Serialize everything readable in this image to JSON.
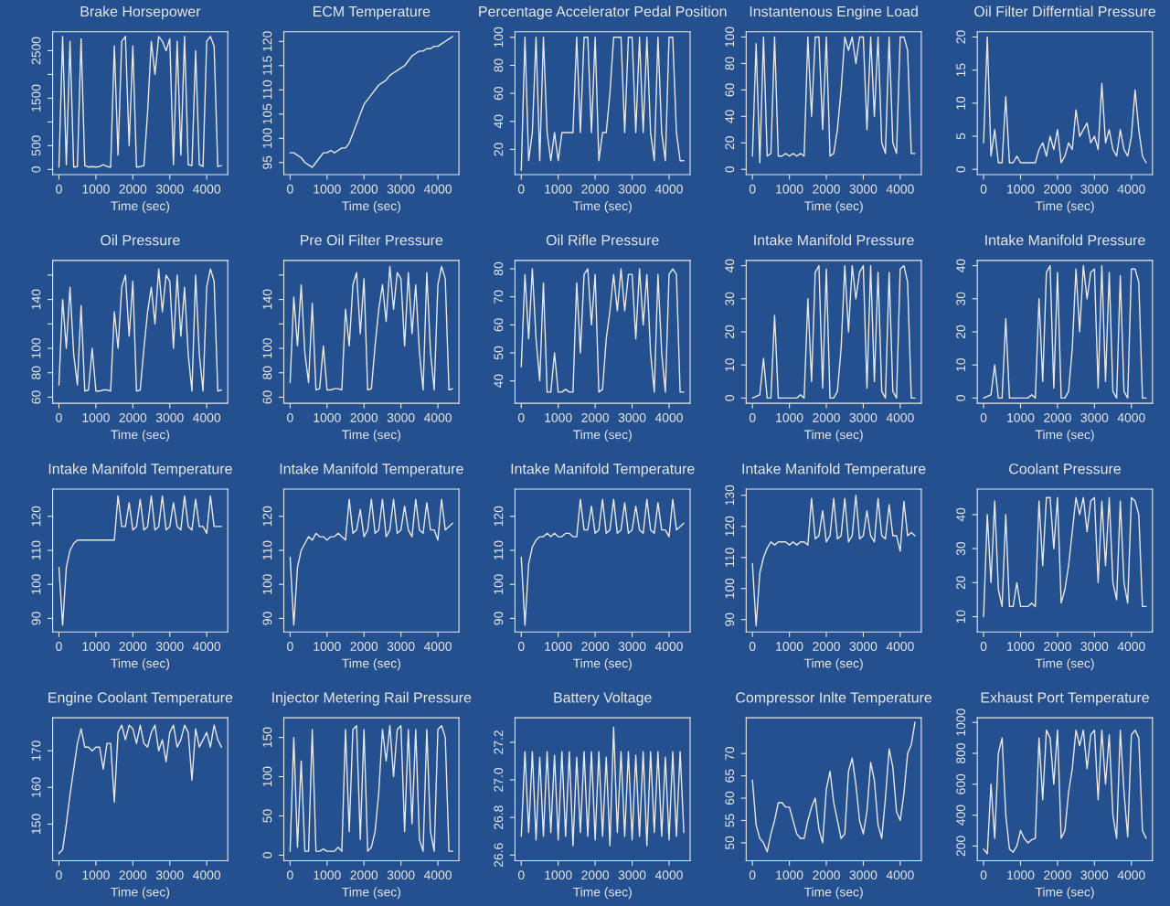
{
  "chart_data": [
    {
      "type": "line",
      "title": "Brake Horsepower",
      "xlabel": "Time (sec)",
      "color": "#e8e8e8",
      "xlim": [
        -170,
        4570
      ],
      "xticks": [
        0,
        1000,
        2000,
        3000,
        4000
      ],
      "ylim": [
        -110,
        2900
      ],
      "yticks": [
        0,
        500,
        {
          "value": 1000,
          "label": null
        },
        1500,
        {
          "value": 2000,
          "label": null
        },
        2500
      ],
      "x": [
        0,
        100,
        200,
        300,
        400,
        500,
        600,
        700,
        800,
        900,
        1000,
        1100,
        1200,
        1300,
        1400,
        1500,
        1600,
        1700,
        1800,
        1900,
        2000,
        2100,
        2200,
        2300,
        2400,
        2500,
        2600,
        2700,
        2800,
        2900,
        3000,
        3100,
        3200,
        3300,
        3400,
        3500,
        3600,
        3700,
        3800,
        3900,
        4000,
        4100,
        4200,
        4300,
        4400
      ],
      "values": [
        50,
        2800,
        100,
        2700,
        50,
        60,
        2750,
        80,
        50,
        60,
        50,
        60,
        100,
        60,
        50,
        2600,
        300,
        2700,
        2800,
        500,
        2600,
        50,
        60,
        80,
        1200,
        2700,
        2000,
        2800,
        2700,
        2500,
        2750,
        100,
        2700,
        300,
        2800,
        100,
        80,
        2500,
        100,
        60,
        2700,
        2800,
        2600,
        60,
        80
      ]
    },
    {
      "type": "line",
      "title": "ECM Temperature",
      "xlabel": "Time (sec)",
      "color": "#e8e8e8",
      "xlim": [
        -170,
        4570
      ],
      "xticks": [
        0,
        1000,
        2000,
        3000,
        4000
      ],
      "ylim": [
        92.5,
        122
      ],
      "yticks": [
        95,
        100,
        105,
        110,
        115,
        120
      ],
      "x": [
        0,
        100,
        200,
        300,
        400,
        500,
        600,
        700,
        800,
        900,
        1000,
        1100,
        1200,
        1300,
        1400,
        1500,
        1600,
        1700,
        1800,
        1900,
        2000,
        2100,
        2200,
        2300,
        2400,
        2500,
        2600,
        2700,
        2800,
        2900,
        3000,
        3100,
        3200,
        3300,
        3400,
        3500,
        3600,
        3700,
        3800,
        3900,
        4000,
        4100,
        4200,
        4300,
        4400
      ],
      "values": [
        97,
        97,
        96.5,
        96,
        95,
        94.5,
        94,
        95,
        96,
        97,
        97,
        97.5,
        97,
        97.5,
        98,
        98,
        99,
        101,
        103,
        105,
        107,
        108,
        109,
        110,
        111,
        111.5,
        112,
        113,
        113.5,
        114,
        114.5,
        115,
        116,
        117,
        117.5,
        118,
        118,
        118.5,
        118.5,
        119,
        119,
        119.5,
        120,
        120.5,
        121
      ]
    },
    {
      "type": "line",
      "title": "Percentage Accelerator Pedal Position",
      "xlabel": "Time (sec)",
      "color": "#e8e8e8",
      "xlim": [
        -170,
        4570
      ],
      "xticks": [
        0,
        1000,
        2000,
        3000,
        4000
      ],
      "ylim": [
        2,
        104
      ],
      "yticks": [
        20,
        40,
        60,
        80,
        100
      ],
      "x": [
        0,
        100,
        200,
        300,
        400,
        500,
        600,
        700,
        800,
        900,
        1000,
        1100,
        1200,
        1300,
        1400,
        1500,
        1600,
        1700,
        1800,
        1900,
        2000,
        2100,
        2200,
        2300,
        2400,
        2500,
        2600,
        2700,
        2800,
        2900,
        3000,
        3100,
        3200,
        3300,
        3400,
        3500,
        3600,
        3700,
        3800,
        3900,
        4000,
        4100,
        4200,
        4300,
        4400
      ],
      "values": [
        5,
        100,
        12,
        32,
        100,
        12,
        100,
        32,
        12,
        32,
        12,
        32,
        32,
        32,
        32,
        100,
        32,
        100,
        100,
        32,
        100,
        12,
        32,
        32,
        60,
        100,
        100,
        100,
        32,
        100,
        100,
        32,
        100,
        32,
        100,
        32,
        12,
        100,
        32,
        12,
        100,
        100,
        32,
        12,
        12
      ]
    },
    {
      "type": "line",
      "title": "Instantenous Engine Load",
      "xlabel": "Time (sec)",
      "color": "#e8e8e8",
      "xlim": [
        -170,
        4570
      ],
      "xticks": [
        0,
        1000,
        2000,
        3000,
        4000
      ],
      "ylim": [
        -4,
        104
      ],
      "yticks": [
        0,
        20,
        40,
        60,
        80,
        100
      ],
      "x": [
        0,
        100,
        200,
        300,
        400,
        500,
        600,
        700,
        800,
        900,
        1000,
        1100,
        1200,
        1300,
        1400,
        1500,
        1600,
        1700,
        1800,
        1900,
        2000,
        2100,
        2200,
        2300,
        2400,
        2500,
        2600,
        2700,
        2800,
        2900,
        3000,
        3100,
        3200,
        3300,
        3400,
        3500,
        3600,
        3700,
        3800,
        3900,
        4000,
        4100,
        4200,
        4300,
        4400
      ],
      "values": [
        10,
        95,
        5,
        100,
        10,
        12,
        100,
        10,
        10,
        12,
        10,
        12,
        10,
        12,
        10,
        100,
        40,
        100,
        100,
        30,
        100,
        10,
        12,
        30,
        60,
        100,
        90,
        100,
        80,
        100,
        100,
        30,
        100,
        40,
        100,
        20,
        12,
        100,
        20,
        12,
        100,
        100,
        90,
        12,
        12
      ]
    },
    {
      "type": "line",
      "title": "Oil Filter Differntial Pressure",
      "xlabel": "Time (sec)",
      "color": "#e8e8e8",
      "xlim": [
        -170,
        4570
      ],
      "xticks": [
        0,
        1000,
        2000,
        3000,
        4000
      ],
      "ylim": [
        -0.8,
        20.8
      ],
      "yticks": [
        0,
        5,
        10,
        15,
        20
      ],
      "x": [
        0,
        100,
        200,
        300,
        400,
        500,
        600,
        700,
        800,
        900,
        1000,
        1100,
        1200,
        1300,
        1400,
        1500,
        1600,
        1700,
        1800,
        1900,
        2000,
        2100,
        2200,
        2300,
        2400,
        2500,
        2600,
        2700,
        2800,
        2900,
        3000,
        3100,
        3200,
        3300,
        3400,
        3500,
        3600,
        3700,
        3800,
        3900,
        4000,
        4100,
        4200,
        4300,
        4400
      ],
      "values": [
        4,
        20,
        2,
        6,
        1,
        1,
        11,
        1,
        1,
        2,
        1,
        1,
        1,
        1,
        1,
        3,
        4,
        2,
        5,
        3,
        6,
        1,
        2,
        4,
        3,
        9,
        5,
        6,
        7,
        4,
        5,
        3,
        13,
        4,
        6,
        3,
        2,
        6,
        3,
        2,
        5,
        12,
        6,
        2,
        1
      ]
    },
    {
      "type": "line",
      "title": "Oil Pressure",
      "xlabel": "Time (sec)",
      "color": "#e8e8e8",
      "xlim": [
        -170,
        4570
      ],
      "xticks": [
        0,
        1000,
        2000,
        3000,
        4000
      ],
      "ylim": [
        55,
        172
      ],
      "yticks": [
        60,
        80,
        100,
        {
          "value": 120,
          "label": null
        },
        140,
        {
          "value": 160,
          "label": null
        }
      ],
      "x": [
        0,
        100,
        200,
        300,
        400,
        500,
        600,
        700,
        800,
        900,
        1000,
        1100,
        1200,
        1300,
        1400,
        1500,
        1600,
        1700,
        1800,
        1900,
        2000,
        2100,
        2200,
        2300,
        2400,
        2500,
        2600,
        2700,
        2800,
        2900,
        3000,
        3100,
        3200,
        3300,
        3400,
        3500,
        3600,
        3700,
        3800,
        3900,
        4000,
        4100,
        4200,
        4300,
        4400
      ],
      "values": [
        70,
        140,
        100,
        150,
        95,
        70,
        135,
        65,
        66,
        100,
        65,
        65,
        66,
        66,
        65,
        130,
        100,
        150,
        160,
        110,
        155,
        65,
        66,
        100,
        130,
        150,
        120,
        165,
        130,
        160,
        155,
        100,
        160,
        110,
        150,
        95,
        65,
        160,
        95,
        65,
        150,
        165,
        155,
        65,
        66
      ]
    },
    {
      "type": "line",
      "title": "Pre Oil Filter Pressure",
      "xlabel": "Time (sec)",
      "color": "#e8e8e8",
      "xlim": [
        -170,
        4570
      ],
      "xticks": [
        0,
        1000,
        2000,
        3000,
        4000
      ],
      "ylim": [
        55,
        172
      ],
      "yticks": [
        60,
        80,
        100,
        {
          "value": 120,
          "label": null
        },
        140,
        {
          "value": 160,
          "label": null
        }
      ],
      "x": [
        0,
        100,
        200,
        300,
        400,
        500,
        600,
        700,
        800,
        900,
        1000,
        1100,
        1200,
        1300,
        1400,
        1500,
        1600,
        1700,
        1800,
        1900,
        2000,
        2100,
        2200,
        2300,
        2400,
        2500,
        2600,
        2700,
        2800,
        2900,
        3000,
        3100,
        3200,
        3300,
        3400,
        3500,
        3600,
        3700,
        3800,
        3900,
        4000,
        4100,
        4200,
        4300,
        4400
      ],
      "values": [
        72,
        142,
        102,
        152,
        96,
        72,
        137,
        66,
        67,
        102,
        66,
        66,
        67,
        67,
        66,
        132,
        102,
        152,
        162,
        112,
        157,
        66,
        67,
        102,
        132,
        152,
        122,
        167,
        132,
        162,
        157,
        102,
        162,
        112,
        152,
        97,
        66,
        162,
        97,
        66,
        152,
        167,
        157,
        66,
        67
      ]
    },
    {
      "type": "line",
      "title": "Oil Rifle Pressure",
      "xlabel": "Time (sec)",
      "color": "#e8e8e8",
      "xlim": [
        -170,
        4570
      ],
      "xticks": [
        0,
        1000,
        2000,
        3000,
        4000
      ],
      "ylim": [
        32,
        83
      ],
      "yticks": [
        40,
        50,
        60,
        70,
        80
      ],
      "x": [
        0,
        100,
        200,
        300,
        400,
        500,
        600,
        700,
        800,
        900,
        1000,
        1100,
        1200,
        1300,
        1400,
        1500,
        1600,
        1700,
        1800,
        1900,
        2000,
        2100,
        2200,
        2300,
        2400,
        2500,
        2600,
        2700,
        2800,
        2900,
        3000,
        3100,
        3200,
        3300,
        3400,
        3500,
        3600,
        3700,
        3800,
        3900,
        4000,
        4100,
        4200,
        4300,
        4400
      ],
      "values": [
        45,
        78,
        55,
        80,
        55,
        40,
        75,
        36,
        36,
        50,
        36,
        36,
        37,
        36,
        36,
        75,
        50,
        78,
        80,
        60,
        78,
        36,
        37,
        55,
        65,
        78,
        65,
        80,
        65,
        78,
        78,
        55,
        80,
        60,
        78,
        50,
        36,
        78,
        50,
        36,
        78,
        80,
        78,
        36,
        36
      ]
    },
    {
      "type": "line",
      "title": "Intake Manifold Pressure",
      "xlabel": "Time (sec)",
      "color": "#e8e8e8",
      "xlim": [
        -170,
        4570
      ],
      "xticks": [
        0,
        1000,
        2000,
        3000,
        4000
      ],
      "ylim": [
        -1.6,
        41.6
      ],
      "yticks": [
        0,
        10,
        20,
        30,
        40
      ],
      "x": [
        0,
        100,
        200,
        300,
        400,
        500,
        600,
        700,
        800,
        900,
        1000,
        1100,
        1200,
        1300,
        1400,
        1500,
        1600,
        1700,
        1800,
        1900,
        2000,
        2100,
        2200,
        2300,
        2400,
        2500,
        2600,
        2700,
        2800,
        2900,
        3000,
        3100,
        3200,
        3300,
        3400,
        3500,
        3600,
        3700,
        3800,
        3900,
        4000,
        4100,
        4200,
        4300,
        4400
      ],
      "values": [
        0,
        0.5,
        1,
        12,
        0,
        0,
        25,
        0,
        0,
        0,
        0,
        0,
        0,
        1,
        0,
        30,
        5,
        38,
        40,
        3,
        39,
        0,
        0,
        2,
        15,
        40,
        20,
        40,
        30,
        38,
        40,
        3,
        40,
        5,
        38,
        2,
        0,
        38,
        2,
        0,
        39,
        40,
        35,
        0,
        0
      ]
    },
    {
      "type": "line",
      "title": "Intake Manifold Pressure",
      "xlabel": "Time (sec)",
      "color": "#e8e8e8",
      "xlim": [
        -170,
        4570
      ],
      "xticks": [
        0,
        1000,
        2000,
        3000,
        4000
      ],
      "ylim": [
        -1.6,
        41.6
      ],
      "yticks": [
        0,
        10,
        20,
        30,
        40
      ],
      "x": [
        0,
        100,
        200,
        300,
        400,
        500,
        600,
        700,
        800,
        900,
        1000,
        1100,
        1200,
        1300,
        1400,
        1500,
        1600,
        1700,
        1800,
        1900,
        2000,
        2100,
        2200,
        2300,
        2400,
        2500,
        2600,
        2700,
        2800,
        2900,
        3000,
        3100,
        3200,
        3300,
        3400,
        3500,
        3600,
        3700,
        3800,
        3900,
        4000,
        4100,
        4200,
        4300,
        4400
      ],
      "values": [
        0,
        0.5,
        1,
        10,
        0,
        0,
        24,
        0,
        0,
        0,
        0,
        0,
        0,
        1,
        0,
        30,
        5,
        38,
        40,
        3,
        38,
        0,
        0,
        2,
        15,
        39,
        20,
        40,
        30,
        38,
        39,
        3,
        40,
        5,
        38,
        2,
        0,
        37,
        2,
        0,
        39,
        39,
        35,
        0,
        0
      ]
    },
    {
      "type": "line",
      "title": "Intake Manifold Temperature",
      "xlabel": "Time (sec)",
      "color": "#e8e8e8",
      "xlim": [
        -170,
        4570
      ],
      "xticks": [
        0,
        1000,
        2000,
        3000,
        4000
      ],
      "ylim": [
        86,
        128
      ],
      "yticks": [
        90,
        100,
        110,
        120
      ],
      "x": [
        0,
        100,
        200,
        300,
        400,
        500,
        600,
        700,
        800,
        900,
        1000,
        1100,
        1200,
        1300,
        1400,
        1500,
        1600,
        1700,
        1800,
        1900,
        2000,
        2100,
        2200,
        2300,
        2400,
        2500,
        2600,
        2700,
        2800,
        2900,
        3000,
        3100,
        3200,
        3300,
        3400,
        3500,
        3600,
        3700,
        3800,
        3900,
        4000,
        4100,
        4200,
        4300,
        4400
      ],
      "values": [
        105,
        88,
        105,
        110,
        112,
        113,
        113,
        113,
        113,
        113,
        113,
        113,
        113,
        113,
        113,
        113,
        126,
        117,
        117,
        124,
        116,
        117,
        125,
        116,
        117,
        126,
        116,
        117,
        126,
        116,
        117,
        124,
        117,
        116,
        126,
        117,
        116,
        125,
        117,
        117,
        115,
        126,
        117,
        117,
        117
      ]
    },
    {
      "type": "line",
      "title": "Intake Manifold Temperature",
      "xlabel": "Time (sec)",
      "color": "#e8e8e8",
      "xlim": [
        -170,
        4570
      ],
      "xticks": [
        0,
        1000,
        2000,
        3000,
        4000
      ],
      "ylim": [
        86,
        128
      ],
      "yticks": [
        90,
        100,
        110,
        120
      ],
      "x": [
        0,
        100,
        200,
        300,
        400,
        500,
        600,
        700,
        800,
        900,
        1000,
        1100,
        1200,
        1300,
        1400,
        1500,
        1600,
        1700,
        1800,
        1900,
        2000,
        2100,
        2200,
        2300,
        2400,
        2500,
        2600,
        2700,
        2800,
        2900,
        3000,
        3100,
        3200,
        3300,
        3400,
        3500,
        3600,
        3700,
        3800,
        3900,
        4000,
        4100,
        4200,
        4300,
        4400
      ],
      "values": [
        108,
        88,
        105,
        110,
        112,
        114,
        113,
        115,
        114,
        114,
        113,
        114,
        114,
        115,
        114,
        113,
        125,
        115,
        116,
        122,
        114,
        116,
        125,
        115,
        116,
        125,
        114,
        116,
        125,
        115,
        116,
        123,
        116,
        114,
        125,
        116,
        115,
        124,
        116,
        116,
        113,
        125,
        116,
        117,
        118
      ]
    },
    {
      "type": "line",
      "title": "Intake Manifold Temperature",
      "xlabel": "Time (sec)",
      "color": "#e8e8e8",
      "xlim": [
        -170,
        4570
      ],
      "xticks": [
        0,
        1000,
        2000,
        3000,
        4000
      ],
      "ylim": [
        86,
        128
      ],
      "yticks": [
        90,
        100,
        110,
        120
      ],
      "x": [
        0,
        100,
        200,
        300,
        400,
        500,
        600,
        700,
        800,
        900,
        1000,
        1100,
        1200,
        1300,
        1400,
        1500,
        1600,
        1700,
        1800,
        1900,
        2000,
        2100,
        2200,
        2300,
        2400,
        2500,
        2600,
        2700,
        2800,
        2900,
        3000,
        3100,
        3200,
        3300,
        3400,
        3500,
        3600,
        3700,
        3800,
        3900,
        4000,
        4100,
        4200,
        4300,
        4400
      ],
      "values": [
        108,
        88,
        106,
        111,
        113,
        114,
        114,
        115,
        114,
        115,
        114,
        114,
        115,
        115,
        114,
        114,
        125,
        116,
        116,
        123,
        115,
        116,
        125,
        115,
        116,
        125,
        115,
        116,
        124,
        115,
        116,
        123,
        116,
        115,
        125,
        116,
        115,
        124,
        116,
        116,
        114,
        125,
        116,
        117,
        118
      ]
    },
    {
      "type": "line",
      "title": "Intake Manifold Temperature",
      "xlabel": "Time (sec)",
      "color": "#e8e8e8",
      "xlim": [
        -170,
        4570
      ],
      "xticks": [
        0,
        1000,
        2000,
        3000,
        4000
      ],
      "ylim": [
        86,
        132
      ],
      "yticks": [
        90,
        100,
        110,
        120,
        130
      ],
      "x": [
        0,
        100,
        200,
        300,
        400,
        500,
        600,
        700,
        800,
        900,
        1000,
        1100,
        1200,
        1300,
        1400,
        1500,
        1600,
        1700,
        1800,
        1900,
        2000,
        2100,
        2200,
        2300,
        2400,
        2500,
        2600,
        2700,
        2800,
        2900,
        3000,
        3100,
        3200,
        3300,
        3400,
        3500,
        3600,
        3700,
        3800,
        3900,
        4000,
        4100,
        4200,
        4300,
        4400
      ],
      "values": [
        108,
        88,
        105,
        110,
        113,
        115,
        114,
        115,
        115,
        115,
        114,
        115,
        114,
        115,
        115,
        114,
        129,
        116,
        117,
        125,
        115,
        117,
        129,
        116,
        117,
        129,
        115,
        117,
        130,
        116,
        117,
        125,
        117,
        115,
        129,
        117,
        116,
        127,
        117,
        117,
        112,
        128,
        117,
        118,
        117
      ]
    },
    {
      "type": "line",
      "title": "Coolant Pressure",
      "xlabel": "Time (sec)",
      "color": "#e8e8e8",
      "xlim": [
        -170,
        4570
      ],
      "xticks": [
        0,
        1000,
        2000,
        3000,
        4000
      ],
      "ylim": [
        5.5,
        47.5
      ],
      "yticks": [
        10,
        20,
        30,
        40
      ],
      "x": [
        0,
        100,
        200,
        300,
        400,
        500,
        600,
        700,
        800,
        900,
        1000,
        1100,
        1200,
        1300,
        1400,
        1500,
        1600,
        1700,
        1800,
        1900,
        2000,
        2100,
        2200,
        2300,
        2400,
        2500,
        2600,
        2700,
        2800,
        2900,
        3000,
        3100,
        3200,
        3300,
        3400,
        3500,
        3600,
        3700,
        3800,
        3900,
        4000,
        4100,
        4200,
        4300,
        4400
      ],
      "values": [
        10,
        40,
        20,
        44,
        18,
        13,
        40,
        13,
        13,
        20,
        13,
        13,
        13,
        14,
        13,
        44,
        25,
        45,
        45,
        30,
        45,
        14,
        18,
        25,
        35,
        45,
        40,
        45,
        35,
        44,
        45,
        20,
        44,
        25,
        45,
        20,
        15,
        44,
        20,
        14,
        45,
        44,
        40,
        13,
        13
      ]
    },
    {
      "type": "line",
      "title": "Engine Coolant Temperature",
      "xlabel": "Time (sec)",
      "color": "#e8e8e8",
      "xlim": [
        -170,
        4570
      ],
      "xticks": [
        0,
        1000,
        2000,
        3000,
        4000
      ],
      "ylim": [
        140,
        179
      ],
      "yticks": [
        150,
        160,
        170
      ],
      "x": [
        0,
        100,
        200,
        300,
        400,
        500,
        600,
        700,
        800,
        900,
        1000,
        1100,
        1200,
        1300,
        1400,
        1500,
        1600,
        1700,
        1800,
        1900,
        2000,
        2100,
        2200,
        2300,
        2400,
        2500,
        2600,
        2700,
        2800,
        2900,
        3000,
        3100,
        3200,
        3300,
        3400,
        3500,
        3600,
        3700,
        3800,
        3900,
        4000,
        4100,
        4200,
        4300,
        4400
      ],
      "values": [
        142,
        143,
        150,
        158,
        165,
        172,
        176,
        171,
        171,
        170,
        171,
        171,
        165,
        172,
        172,
        156,
        175,
        177,
        173,
        177,
        176,
        172,
        177,
        172,
        171,
        175,
        177,
        170,
        173,
        167,
        175,
        177,
        171,
        173,
        177,
        175,
        162,
        176,
        171,
        173,
        175,
        171,
        177,
        173,
        171
      ]
    },
    {
      "type": "line",
      "title": "Injector Metering Rail Pressure",
      "xlabel": "Time (sec)",
      "color": "#e8e8e8",
      "xlim": [
        -170,
        4570
      ],
      "xticks": [
        0,
        1000,
        2000,
        3000,
        4000
      ],
      "ylim": [
        -7,
        175
      ],
      "yticks": [
        0,
        50,
        100,
        150
      ],
      "x": [
        0,
        100,
        200,
        300,
        400,
        500,
        600,
        700,
        800,
        900,
        1000,
        1100,
        1200,
        1300,
        1400,
        1500,
        1600,
        1700,
        1800,
        1900,
        2000,
        2100,
        2200,
        2300,
        2400,
        2500,
        2600,
        2700,
        2800,
        2900,
        3000,
        3100,
        3200,
        3300,
        3400,
        3500,
        3600,
        3700,
        3800,
        3900,
        4000,
        4100,
        4200,
        4300,
        4400
      ],
      "values": [
        5,
        150,
        10,
        120,
        5,
        5,
        160,
        5,
        5,
        8,
        5,
        5,
        5,
        10,
        5,
        160,
        30,
        160,
        165,
        20,
        160,
        5,
        10,
        30,
        80,
        160,
        120,
        165,
        100,
        160,
        165,
        30,
        160,
        40,
        160,
        20,
        5,
        160,
        30,
        5,
        160,
        165,
        150,
        5,
        5
      ]
    },
    {
      "type": "line",
      "title": "Battery Voltage",
      "xlabel": "Time (sec)",
      "color": "#e8e8e8",
      "xlim": [
        -170,
        4570
      ],
      "xticks": [
        0,
        1000,
        2000,
        3000,
        4000
      ],
      "ylim": [
        26.57,
        27.33
      ],
      "yticks": [
        26.6,
        26.8,
        {
          "value": 27,
          "label": "27.0"
        },
        27.2
      ],
      "x": [
        0,
        100,
        200,
        300,
        400,
        500,
        600,
        700,
        800,
        900,
        1000,
        1100,
        1200,
        1300,
        1400,
        1500,
        1600,
        1700,
        1800,
        1900,
        2000,
        2100,
        2200,
        2300,
        2400,
        2500,
        2600,
        2700,
        2800,
        2900,
        3000,
        3100,
        3200,
        3300,
        3400,
        3500,
        3600,
        3700,
        3800,
        3900,
        4000,
        4100,
        4200,
        4300,
        4400
      ],
      "values": [
        26.7,
        27.15,
        26.72,
        27.15,
        26.68,
        27.12,
        26.7,
        27.15,
        26.72,
        27.13,
        26.68,
        27.15,
        26.7,
        27.15,
        26.65,
        27.12,
        26.72,
        27.15,
        26.7,
        27.15,
        26.68,
        27.15,
        26.7,
        27.12,
        26.65,
        27.28,
        26.72,
        27.15,
        26.7,
        27.15,
        26.68,
        27.13,
        26.7,
        27.15,
        26.65,
        27.15,
        26.72,
        27.15,
        26.7,
        27.12,
        26.68,
        27.15,
        26.7,
        27.15,
        26.72
      ]
    },
    {
      "type": "line",
      "title": "Compressor Inlte Temperature",
      "xlabel": "Time (sec)",
      "color": "#e8e8e8",
      "xlim": [
        -170,
        4570
      ],
      "xticks": [
        0,
        1000,
        2000,
        3000,
        4000
      ],
      "ylim": [
        46,
        78
      ],
      "yticks": [
        50,
        55,
        60,
        65,
        70
      ],
      "x": [
        0,
        100,
        200,
        300,
        400,
        500,
        600,
        700,
        800,
        900,
        1000,
        1100,
        1200,
        1300,
        1400,
        1500,
        1600,
        1700,
        1800,
        1900,
        2000,
        2100,
        2200,
        2300,
        2400,
        2500,
        2600,
        2700,
        2800,
        2900,
        3000,
        3100,
        3200,
        3300,
        3400,
        3500,
        3600,
        3700,
        3800,
        3900,
        4000,
        4100,
        4200,
        4300,
        4400
      ],
      "values": [
        64,
        54,
        51,
        50,
        48,
        52,
        55,
        59,
        59,
        58,
        58,
        55,
        52,
        51,
        51,
        55,
        58,
        60,
        53,
        50,
        62,
        66,
        59,
        55,
        51,
        52,
        66,
        69,
        63,
        55,
        52,
        57,
        68,
        64,
        54,
        51,
        60,
        71,
        67,
        57,
        55,
        61,
        70,
        72,
        77
      ]
    },
    {
      "type": "line",
      "title": "Exhaust Port Temperature",
      "xlabel": "Time (sec)",
      "color": "#e8e8e8",
      "xlim": [
        -170,
        4570
      ],
      "xticks": [
        0,
        1000,
        2000,
        3000,
        4000
      ],
      "ylim": [
        105,
        1030
      ],
      "yticks": [
        200,
        400,
        600,
        800,
        1000
      ],
      "x": [
        0,
        100,
        200,
        300,
        400,
        500,
        600,
        700,
        800,
        900,
        1000,
        1100,
        1200,
        1300,
        1400,
        1500,
        1600,
        1700,
        1800,
        1900,
        2000,
        2100,
        2200,
        2300,
        2400,
        2500,
        2600,
        2700,
        2800,
        2900,
        3000,
        3100,
        3200,
        3300,
        3400,
        3500,
        3600,
        3700,
        3800,
        3900,
        4000,
        4100,
        4200,
        4300,
        4400
      ],
      "values": [
        180,
        150,
        600,
        250,
        800,
        900,
        400,
        180,
        160,
        200,
        300,
        250,
        220,
        240,
        250,
        900,
        500,
        950,
        900,
        600,
        950,
        250,
        300,
        550,
        700,
        950,
        850,
        950,
        700,
        920,
        950,
        500,
        950,
        600,
        920,
        400,
        250,
        950,
        550,
        260,
        920,
        950,
        900,
        300,
        250
      ]
    }
  ]
}
